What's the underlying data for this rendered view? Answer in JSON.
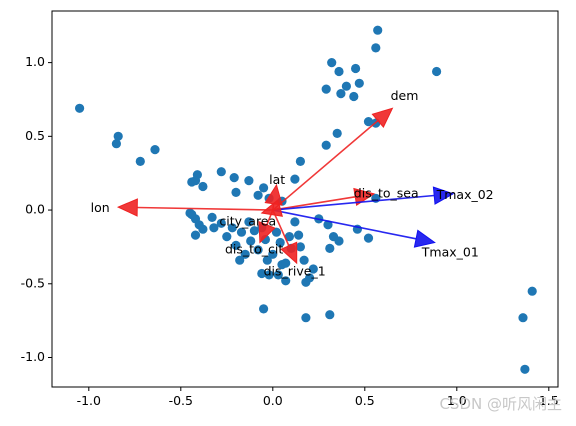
{
  "chart_data": {
    "type": "scatter",
    "title": "",
    "xlabel": "",
    "ylabel": "",
    "xlim": [
      -1.2,
      1.55
    ],
    "ylim": [
      -1.2,
      1.35
    ],
    "xticks": [
      "-1.0",
      "-0.5",
      "0.0",
      "0.5",
      "1.0",
      "1.5"
    ],
    "xtick_values": [
      -1.0,
      -0.5,
      0.0,
      0.5,
      1.0,
      1.5
    ],
    "yticks": [
      "1.0",
      "0.5",
      "0.0",
      "-0.5",
      "-1.0"
    ],
    "ytick_values": [
      1.0,
      0.5,
      0.0,
      -0.5,
      -1.0
    ],
    "grid": false,
    "point_color": "#1f77b4",
    "points": [
      [
        -1.05,
        0.69
      ],
      [
        -0.85,
        0.45
      ],
      [
        -0.84,
        0.5
      ],
      [
        -0.72,
        0.33
      ],
      [
        -0.64,
        0.41
      ],
      [
        -0.44,
        0.19
      ],
      [
        -0.41,
        0.24
      ],
      [
        -0.42,
        0.2
      ],
      [
        -0.38,
        0.16
      ],
      [
        -0.28,
        0.26
      ],
      [
        -0.21,
        0.22
      ],
      [
        -0.2,
        0.12
      ],
      [
        -0.13,
        0.2
      ],
      [
        -0.05,
        0.15
      ],
      [
        -0.08,
        0.1
      ],
      [
        -0.02,
        0.08
      ],
      [
        0.05,
        0.06
      ],
      [
        0.12,
        0.21
      ],
      [
        0.15,
        0.33
      ],
      [
        -0.45,
        -0.02
      ],
      [
        -0.42,
        -0.06
      ],
      [
        -0.44,
        -0.03
      ],
      [
        -0.4,
        -0.1
      ],
      [
        -0.42,
        -0.17
      ],
      [
        -0.38,
        -0.13
      ],
      [
        -0.33,
        -0.05
      ],
      [
        -0.32,
        -0.12
      ],
      [
        -0.28,
        -0.09
      ],
      [
        -0.25,
        -0.18
      ],
      [
        -0.22,
        -0.12
      ],
      [
        -0.2,
        -0.24
      ],
      [
        -0.18,
        -0.34
      ],
      [
        -0.17,
        -0.15
      ],
      [
        -0.15,
        -0.3
      ],
      [
        -0.13,
        -0.08
      ],
      [
        -0.12,
        -0.21
      ],
      [
        -0.1,
        -0.14
      ],
      [
        -0.08,
        -0.27
      ],
      [
        -0.06,
        -0.12
      ],
      [
        -0.04,
        -0.2
      ],
      [
        -0.03,
        -0.34
      ],
      [
        -0.02,
        -0.44
      ],
      [
        0.0,
        -0.3
      ],
      [
        0.02,
        -0.15
      ],
      [
        0.04,
        -0.22
      ],
      [
        0.05,
        -0.37
      ],
      [
        0.07,
        -0.36
      ],
      [
        0.09,
        -0.18
      ],
      [
        0.1,
        -0.26
      ],
      [
        0.12,
        -0.08
      ],
      [
        0.14,
        -0.17
      ],
      [
        0.15,
        -0.25
      ],
      [
        0.17,
        -0.34
      ],
      [
        0.18,
        -0.49
      ],
      [
        0.2,
        -0.46
      ],
      [
        0.22,
        -0.4
      ],
      [
        0.25,
        -0.06
      ],
      [
        0.3,
        -0.1
      ],
      [
        0.31,
        -0.26
      ],
      [
        0.33,
        -0.18
      ],
      [
        0.36,
        -0.21
      ],
      [
        0.46,
        -0.13
      ],
      [
        0.52,
        -0.19
      ],
      [
        -0.06,
        -0.43
      ],
      [
        0.03,
        -0.44
      ],
      [
        0.07,
        -0.48
      ],
      [
        -0.05,
        -0.67
      ],
      [
        0.18,
        -0.73
      ],
      [
        0.31,
        -0.71
      ],
      [
        0.29,
        0.82
      ],
      [
        0.32,
        1.0
      ],
      [
        0.36,
        0.94
      ],
      [
        0.37,
        0.79
      ],
      [
        0.4,
        0.84
      ],
      [
        0.44,
        0.77
      ],
      [
        0.45,
        0.96
      ],
      [
        0.47,
        0.86
      ],
      [
        0.52,
        0.6
      ],
      [
        0.56,
        0.59
      ],
      [
        0.56,
        1.1
      ],
      [
        0.57,
        1.22
      ],
      [
        0.89,
        0.94
      ],
      [
        0.35,
        0.52
      ],
      [
        0.29,
        0.44
      ],
      [
        0.56,
        0.08
      ],
      [
        1.36,
        -0.73
      ],
      [
        1.37,
        -1.08
      ],
      [
        1.41,
        -0.55
      ]
    ],
    "arrows": [
      {
        "label": "dem",
        "x": 0.65,
        "y": 0.69,
        "color": "#ee2222"
      },
      {
        "label": "dis_to_sea",
        "x": 0.55,
        "y": 0.11,
        "color": "#ee2222"
      },
      {
        "label": "Tmax_02",
        "x": 0.98,
        "y": 0.11,
        "color": "#1111ee"
      },
      {
        "label": "Tmax_01",
        "x": 0.88,
        "y": -0.22,
        "color": "#1111ee"
      },
      {
        "label": "lon",
        "x": -0.84,
        "y": 0.02,
        "color": "#ee2222"
      },
      {
        "label": "lat",
        "x": 0.02,
        "y": 0.17,
        "color": "#ee2222"
      },
      {
        "label": "city_area",
        "x": -0.06,
        "y": -0.02,
        "color": "#ee2222"
      },
      {
        "label": "dis_to_cit",
        "x": -0.07,
        "y": -0.22,
        "color": "#ee2222"
      },
      {
        "label": "dis_rive_1",
        "x": 0.13,
        "y": -0.36,
        "color": "#ee2222"
      }
    ],
    "arrow_labels": [
      {
        "text": "dem",
        "x": 0.64,
        "y": 0.77
      },
      {
        "text": "dis_to_sea",
        "x": 0.44,
        "y": 0.11
      },
      {
        "text": "Tmax_02",
        "x": 0.89,
        "y": 0.1
      },
      {
        "text": "Tmax_01",
        "x": 0.81,
        "y": -0.29
      },
      {
        "text": "lon",
        "x": -0.99,
        "y": 0.01
      },
      {
        "text": "lat",
        "x": -0.02,
        "y": 0.2
      },
      {
        "text": "city_area",
        "x": -0.29,
        "y": -0.08
      },
      {
        "text": "dis_to_cit",
        "x": -0.26,
        "y": -0.27
      },
      {
        "text": "dis_rive_1",
        "x": -0.05,
        "y": -0.42
      }
    ]
  },
  "watermark": "CSDN @听风闲主"
}
